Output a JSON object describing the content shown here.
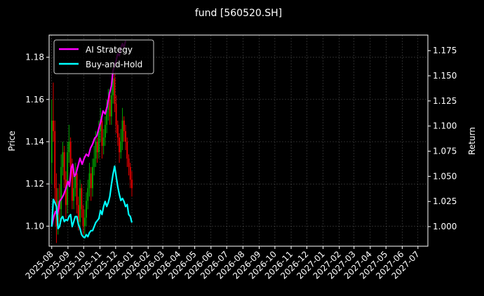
{
  "chart_data": {
    "type": "line",
    "title": "fund [560520.SH]",
    "xlabel": "",
    "ylabel_left": "Price",
    "ylabel_right": "Return",
    "grid": true,
    "legend_placement": "top-left",
    "x_range": [
      "2025-07-27",
      "2027-07-20"
    ],
    "x_ticks": [
      "2025-08",
      "2025-09",
      "2025-10",
      "2025-11",
      "2025-12",
      "2026-01",
      "2026-02",
      "2026-03",
      "2026-04",
      "2026-05",
      "2026-06",
      "2026-07",
      "2026-08",
      "2026-09",
      "2026-10",
      "2026-11",
      "2026-12",
      "2027-01",
      "2027-02",
      "2027-03",
      "2027-04",
      "2027-05",
      "2027-06",
      "2027-07"
    ],
    "ylim_left": [
      1.0905,
      1.1905
    ],
    "yticks_left": [
      "1.10",
      "1.12",
      "1.14",
      "1.16",
      "1.18"
    ],
    "ylim_right": [
      0.9805,
      1.1905
    ],
    "yticks_right": [
      "1.000",
      "1.025",
      "1.050",
      "1.075",
      "1.100",
      "1.125",
      "1.150",
      "1.175"
    ],
    "candles": {
      "up_color": "#00a000",
      "down_color": "#e00000",
      "x": [
        "2025-08-01",
        "2025-08-04",
        "2025-08-07",
        "2025-08-10",
        "2025-08-13",
        "2025-08-16",
        "2025-08-19",
        "2025-08-22",
        "2025-08-25",
        "2025-08-28",
        "2025-08-31",
        "2025-09-03",
        "2025-09-06",
        "2025-09-09",
        "2025-09-12",
        "2025-09-15",
        "2025-09-18",
        "2025-09-21",
        "2025-09-24",
        "2025-09-27",
        "2025-09-30",
        "2025-10-03",
        "2025-10-06",
        "2025-10-09",
        "2025-10-12",
        "2025-10-15",
        "2025-10-18",
        "2025-10-21",
        "2025-10-24",
        "2025-10-27",
        "2025-10-30",
        "2025-11-02",
        "2025-11-05",
        "2025-11-08",
        "2025-11-11",
        "2025-11-14",
        "2025-11-17",
        "2025-11-20",
        "2025-11-23",
        "2025-11-26",
        "2025-11-29",
        "2025-12-02",
        "2025-12-05",
        "2025-12-08",
        "2025-12-11",
        "2025-12-14",
        "2025-12-17",
        "2025-12-20",
        "2025-12-23",
        "2025-12-26",
        "2025-12-29",
        "2026-01-01"
      ],
      "open": [
        1.13,
        1.15,
        1.145,
        1.118,
        1.1,
        1.112,
        1.108,
        1.128,
        1.135,
        1.122,
        1.11,
        1.135,
        1.14,
        1.128,
        1.112,
        1.118,
        1.125,
        1.11,
        1.102,
        1.118,
        1.108,
        1.1,
        1.104,
        1.112,
        1.118,
        1.125,
        1.118,
        1.128,
        1.132,
        1.14,
        1.135,
        1.145,
        1.15,
        1.138,
        1.142,
        1.148,
        1.155,
        1.16,
        1.152,
        1.162,
        1.17,
        1.158,
        1.148,
        1.142,
        1.135,
        1.14,
        1.15,
        1.145,
        1.14,
        1.132,
        1.128,
        1.122
      ],
      "close": [
        1.15,
        1.145,
        1.118,
        1.1,
        1.112,
        1.108,
        1.128,
        1.135,
        1.122,
        1.11,
        1.135,
        1.14,
        1.128,
        1.112,
        1.118,
        1.125,
        1.11,
        1.102,
        1.118,
        1.108,
        1.1,
        1.104,
        1.112,
        1.118,
        1.125,
        1.118,
        1.128,
        1.132,
        1.14,
        1.135,
        1.145,
        1.15,
        1.138,
        1.142,
        1.148,
        1.155,
        1.16,
        1.152,
        1.162,
        1.17,
        1.158,
        1.148,
        1.142,
        1.135,
        1.14,
        1.15,
        1.145,
        1.14,
        1.132,
        1.128,
        1.122,
        1.118
      ],
      "high": [
        1.16,
        1.168,
        1.15,
        1.125,
        1.118,
        1.12,
        1.134,
        1.14,
        1.138,
        1.126,
        1.14,
        1.148,
        1.142,
        1.132,
        1.124,
        1.13,
        1.128,
        1.114,
        1.122,
        1.12,
        1.11,
        1.108,
        1.116,
        1.122,
        1.13,
        1.128,
        1.132,
        1.138,
        1.145,
        1.142,
        1.15,
        1.156,
        1.152,
        1.146,
        1.152,
        1.16,
        1.165,
        1.162,
        1.168,
        1.176,
        1.172,
        1.162,
        1.15,
        1.144,
        1.146,
        1.156,
        1.152,
        1.148,
        1.142,
        1.134,
        1.13,
        1.126
      ],
      "low": [
        1.12,
        1.14,
        1.112,
        1.092,
        1.096,
        1.102,
        1.104,
        1.124,
        1.118,
        1.104,
        1.106,
        1.13,
        1.124,
        1.108,
        1.108,
        1.114,
        1.106,
        1.098,
        1.098,
        1.104,
        1.096,
        1.096,
        1.1,
        1.108,
        1.114,
        1.112,
        1.114,
        1.124,
        1.128,
        1.13,
        1.132,
        1.14,
        1.132,
        1.134,
        1.138,
        1.144,
        1.15,
        1.148,
        1.148,
        1.158,
        1.154,
        1.144,
        1.138,
        1.13,
        1.132,
        1.136,
        1.14,
        1.136,
        1.128,
        1.124,
        1.118,
        1.114
      ]
    },
    "series": [
      {
        "name": "AI Strategy",
        "color": "#ff00ff",
        "axis": "right",
        "x": [
          "2025-08-01",
          "2025-08-05",
          "2025-08-08",
          "2025-08-12",
          "2025-08-16",
          "2025-08-20",
          "2025-08-24",
          "2025-08-28",
          "2025-09-01",
          "2025-09-04",
          "2025-09-07",
          "2025-09-10",
          "2025-09-13",
          "2025-09-16",
          "2025-09-20",
          "2025-09-24",
          "2025-09-28",
          "2025-10-02",
          "2025-10-06",
          "2025-10-10",
          "2025-10-14",
          "2025-10-18",
          "2025-10-22",
          "2025-10-26",
          "2025-10-30",
          "2025-11-03",
          "2025-11-07",
          "2025-11-11",
          "2025-11-15",
          "2025-11-19",
          "2025-11-23",
          "2025-11-26",
          "2025-11-29",
          "2025-12-02",
          "2025-12-05",
          "2025-12-08",
          "2025-12-11",
          "2025-12-14",
          "2025-12-17",
          "2025-12-20"
        ],
        "values": [
          1.0,
          1.01,
          1.015,
          1.012,
          1.025,
          1.028,
          1.032,
          1.038,
          1.045,
          1.04,
          1.058,
          1.062,
          1.05,
          1.052,
          1.06,
          1.068,
          1.062,
          1.068,
          1.072,
          1.07,
          1.078,
          1.082,
          1.088,
          1.09,
          1.098,
          1.105,
          1.115,
          1.112,
          1.12,
          1.132,
          1.14,
          1.155,
          1.16,
          1.165,
          1.172,
          1.17,
          1.178,
          1.182,
          1.178,
          1.185
        ]
      },
      {
        "name": "Buy-and-Hold",
        "color": "#00ffff",
        "axis": "right",
        "x": [
          "2025-08-01",
          "2025-08-04",
          "2025-08-07",
          "2025-08-10",
          "2025-08-13",
          "2025-08-16",
          "2025-08-19",
          "2025-08-22",
          "2025-08-25",
          "2025-08-28",
          "2025-08-31",
          "2025-09-03",
          "2025-09-06",
          "2025-09-09",
          "2025-09-12",
          "2025-09-15",
          "2025-09-18",
          "2025-09-21",
          "2025-09-24",
          "2025-09-27",
          "2025-09-30",
          "2025-10-03",
          "2025-10-06",
          "2025-10-09",
          "2025-10-12",
          "2025-10-15",
          "2025-10-18",
          "2025-10-21",
          "2025-10-24",
          "2025-10-27",
          "2025-10-30",
          "2025-11-02",
          "2025-11-05",
          "2025-11-08",
          "2025-11-11",
          "2025-11-14",
          "2025-11-17",
          "2025-11-20",
          "2025-11-23",
          "2025-11-26",
          "2025-11-29",
          "2025-12-02",
          "2025-12-05",
          "2025-12-08",
          "2025-12-11",
          "2025-12-14",
          "2025-12-17",
          "2025-12-20",
          "2025-12-23",
          "2025-12-26",
          "2025-12-29",
          "2026-01-01"
        ],
        "values": [
          1.0,
          1.027,
          1.024,
          1.02,
          0.998,
          1.0,
          1.008,
          1.01,
          1.005,
          1.007,
          1.006,
          1.01,
          1.012,
          1.0,
          1.005,
          1.01,
          1.01,
          1.002,
          0.998,
          0.992,
          0.99,
          0.989,
          0.992,
          0.99,
          0.994,
          0.996,
          0.996,
          1.0,
          1.004,
          1.006,
          1.008,
          1.016,
          1.012,
          1.02,
          1.025,
          1.02,
          1.024,
          1.03,
          1.042,
          1.052,
          1.06,
          1.05,
          1.04,
          1.032,
          1.026,
          1.028,
          1.025,
          1.02,
          1.022,
          1.012,
          1.01,
          1.004
        ]
      }
    ]
  }
}
